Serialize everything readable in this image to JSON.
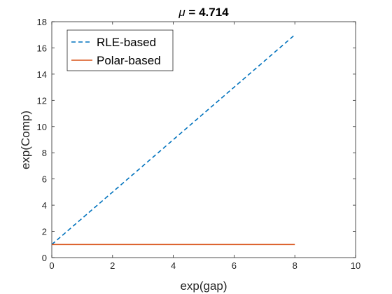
{
  "chart_data": {
    "type": "line",
    "title": {
      "symbol": "μ",
      "rest": " = 4.714"
    },
    "xlabel": "exp(gap)",
    "ylabel": "exp(Comp)",
    "xlim": [
      0,
      10
    ],
    "ylim": [
      0,
      18
    ],
    "xticks": [
      "0",
      "2",
      "4",
      "6",
      "8",
      "10"
    ],
    "yticks": [
      "0",
      "2",
      "4",
      "6",
      "8",
      "10",
      "12",
      "14",
      "16",
      "18"
    ],
    "grid": false,
    "legend_position": "top-left",
    "series": [
      {
        "name": "RLE-based",
        "style": "dashed",
        "color": "#0072BD",
        "x": [
          0,
          8
        ],
        "y": [
          1,
          17
        ]
      },
      {
        "name": "Polar-based",
        "style": "solid",
        "color": "#D95319",
        "x": [
          0,
          8
        ],
        "y": [
          1,
          1
        ]
      }
    ]
  }
}
